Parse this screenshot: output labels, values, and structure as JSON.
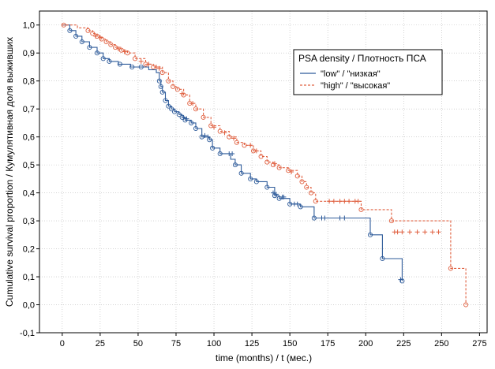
{
  "chart_data": {
    "type": "line",
    "subtype": "kaplan-meier",
    "xlabel": "time (months) / t (мес.)",
    "ylabel": "Cumulative survival proportion / Кумулятивная доля выживших",
    "xlim": [
      -15,
      280
    ],
    "ylim": [
      -0.1,
      1.05
    ],
    "x_ticks": [
      0,
      25,
      50,
      75,
      100,
      125,
      150,
      175,
      200,
      225,
      250,
      275
    ],
    "y_ticks": [
      -0.1,
      0.0,
      0.1,
      0.2,
      0.3,
      0.4,
      0.5,
      0.6,
      0.7,
      0.8,
      0.9,
      1.0
    ],
    "x_tick_labels": [
      "0",
      "25",
      "50",
      "75",
      "100",
      "125",
      "150",
      "175",
      "200",
      "225",
      "250",
      "275"
    ],
    "y_tick_labels": [
      "-0,1",
      "0,0",
      "0,1",
      "0,2",
      "0,3",
      "0,4",
      "0,5",
      "0,6",
      "0,7",
      "0,8",
      "0,9",
      "1,0"
    ],
    "grid": true,
    "legend": {
      "title": "PSA density / Плотность ПСА",
      "placement": "top-right",
      "entries": [
        "\"low\" / \"низкая\"",
        "\"high\" / \"высокая\""
      ]
    },
    "series": [
      {
        "name": "\"low\" / \"низкая\"",
        "color": "#2e5b9a",
        "dash": "solid",
        "x": [
          0,
          5,
          9,
          13,
          18,
          23,
          27,
          31,
          37,
          45,
          51,
          57,
          62,
          64,
          65,
          66,
          68,
          70,
          72,
          74,
          77,
          79,
          81,
          85,
          88,
          92,
          97,
          99,
          104,
          111,
          114,
          118,
          124,
          128,
          135,
          140,
          143,
          150,
          157,
          166,
          176,
          203,
          211,
          224
        ],
        "y": [
          1.0,
          0.98,
          0.96,
          0.94,
          0.92,
          0.9,
          0.88,
          0.87,
          0.86,
          0.85,
          0.85,
          0.84,
          0.83,
          0.8,
          0.78,
          0.76,
          0.73,
          0.71,
          0.7,
          0.69,
          0.68,
          0.67,
          0.66,
          0.65,
          0.63,
          0.6,
          0.59,
          0.56,
          0.54,
          0.52,
          0.5,
          0.47,
          0.45,
          0.44,
          0.42,
          0.39,
          0.38,
          0.36,
          0.35,
          0.31,
          0.31,
          0.25,
          0.165,
          0.085
        ],
        "event_x": [
          5,
          9,
          13,
          18,
          23,
          27,
          31,
          38,
          46,
          52,
          64,
          65,
          66,
          68,
          70,
          72,
          74,
          77,
          79,
          81,
          85,
          88,
          92,
          97,
          99,
          104,
          114,
          118,
          124,
          128,
          135,
          140,
          143,
          150,
          157,
          166,
          203,
          211,
          224
        ],
        "event_y": [
          0.98,
          0.96,
          0.94,
          0.92,
          0.9,
          0.88,
          0.87,
          0.86,
          0.85,
          0.85,
          0.8,
          0.78,
          0.76,
          0.73,
          0.71,
          0.7,
          0.69,
          0.68,
          0.67,
          0.66,
          0.65,
          0.63,
          0.6,
          0.59,
          0.56,
          0.54,
          0.5,
          0.47,
          0.45,
          0.44,
          0.42,
          0.39,
          0.38,
          0.36,
          0.35,
          0.31,
          0.25,
          0.165,
          0.085
        ],
        "censor_x": [
          80,
          82,
          94,
          96,
          110,
          112,
          139,
          141,
          145,
          146,
          153,
          155,
          171,
          173,
          183,
          186,
          223
        ],
        "censor_y": [
          0.67,
          0.665,
          0.605,
          0.6,
          0.54,
          0.54,
          0.4,
          0.395,
          0.385,
          0.385,
          0.36,
          0.36,
          0.31,
          0.31,
          0.31,
          0.31,
          0.09
        ]
      },
      {
        "name": "\"high\" / \"высокая\"",
        "color": "#e06040",
        "dash": "dashed",
        "x": [
          0,
          10,
          17,
          20,
          23,
          26,
          29,
          32,
          35,
          39,
          43,
          48,
          55,
          60,
          66,
          70,
          73,
          76,
          80,
          84,
          88,
          93,
          98,
          104,
          110,
          115,
          120,
          126,
          131,
          135,
          139,
          143,
          149,
          155,
          158,
          161,
          164,
          167,
          197,
          204,
          217,
          256,
          266
        ],
        "y": [
          1.0,
          0.99,
          0.98,
          0.97,
          0.96,
          0.95,
          0.94,
          0.93,
          0.92,
          0.91,
          0.9,
          0.88,
          0.86,
          0.85,
          0.83,
          0.8,
          0.78,
          0.77,
          0.75,
          0.72,
          0.7,
          0.67,
          0.64,
          0.62,
          0.6,
          0.58,
          0.57,
          0.55,
          0.53,
          0.51,
          0.5,
          0.49,
          0.48,
          0.46,
          0.44,
          0.42,
          0.4,
          0.37,
          0.34,
          0.34,
          0.3,
          0.13,
          0.0
        ],
        "event_x": [
          1,
          17,
          20,
          23,
          26,
          29,
          32,
          35,
          39,
          43,
          48,
          55,
          60,
          66,
          70,
          73,
          76,
          80,
          84,
          88,
          93,
          98,
          104,
          110,
          115,
          120,
          126,
          131,
          135,
          139,
          143,
          149,
          155,
          158,
          161,
          164,
          167,
          197,
          217,
          256,
          266
        ],
        "event_y": [
          1.0,
          0.98,
          0.97,
          0.96,
          0.95,
          0.94,
          0.93,
          0.92,
          0.91,
          0.9,
          0.88,
          0.86,
          0.85,
          0.83,
          0.8,
          0.78,
          0.77,
          0.75,
          0.72,
          0.7,
          0.67,
          0.64,
          0.62,
          0.6,
          0.58,
          0.57,
          0.55,
          0.53,
          0.51,
          0.5,
          0.49,
          0.48,
          0.46,
          0.44,
          0.42,
          0.4,
          0.37,
          0.34,
          0.3,
          0.13,
          0.0
        ],
        "censor_x": [
          22,
          25,
          37,
          41,
          52,
          57,
          62,
          64,
          79,
          86,
          100,
          107,
          113,
          124,
          128,
          140,
          151,
          176,
          179,
          183,
          186,
          189,
          193,
          195,
          219,
          221,
          224,
          229,
          234,
          239,
          244,
          248
        ],
        "censor_y": [
          0.96,
          0.955,
          0.915,
          0.905,
          0.87,
          0.86,
          0.85,
          0.845,
          0.755,
          0.72,
          0.635,
          0.615,
          0.595,
          0.57,
          0.55,
          0.505,
          0.475,
          0.37,
          0.37,
          0.37,
          0.37,
          0.37,
          0.37,
          0.37,
          0.26,
          0.26,
          0.26,
          0.26,
          0.26,
          0.26,
          0.26,
          0.26
        ]
      }
    ]
  }
}
